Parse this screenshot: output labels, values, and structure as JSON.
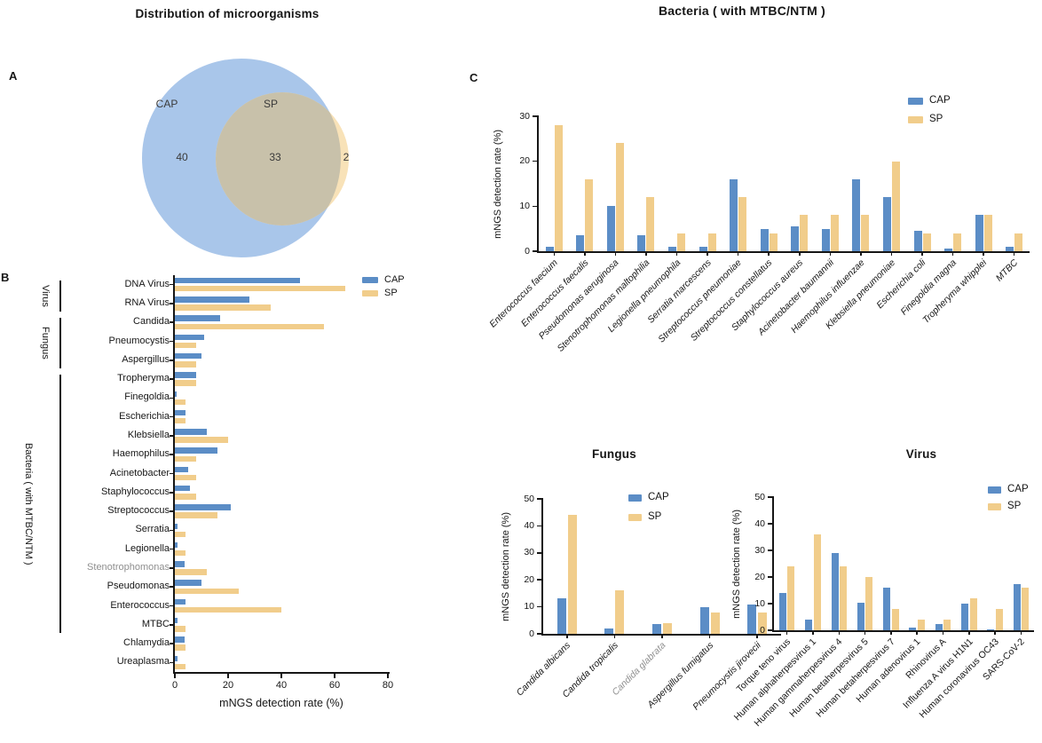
{
  "panels": {
    "a": "A",
    "b": "B",
    "c": "C"
  },
  "colors": {
    "cap": "#5B8DC6",
    "sp": "#F1CD8B",
    "venn_cap": "#A9C6EA",
    "venn_sp": "#F8E2B8",
    "venn_overlap": "#C8C1AA",
    "muted_label": "#8F8F8F",
    "ink": "#161616"
  },
  "chart_data": [
    {
      "id": "venn-distribution",
      "type": "venn",
      "title": "Distribution of microorganisms",
      "sets": [
        {
          "label": "CAP",
          "value": 40
        },
        {
          "label": "SP",
          "value": 2
        }
      ],
      "overlap": 33
    },
    {
      "id": "all-organisms",
      "type": "bar",
      "orientation": "horizontal",
      "xlabel": "mNGS detection rate (%)",
      "xlim": [
        0,
        80
      ],
      "xticks": [
        0,
        20,
        40,
        60,
        80
      ],
      "legend": [
        "CAP",
        "SP"
      ],
      "legend_position": "top-right",
      "categories": [
        "DNA Virus",
        "RNA Virus",
        "Candida",
        "Pneumocystis",
        "Aspergillus",
        "Tropheryma",
        "Finegoldia",
        "Escherichia",
        "Klebsiella",
        "Haemophilus",
        "Acinetobacter",
        "Staphylococcus",
        "Streptococcus",
        "Serratia",
        "Legionella",
        "Stenotrophomonas",
        "Pseudomonas",
        "Enterococcus",
        "MTBC",
        "Chlamydia",
        "Ureaplasma"
      ],
      "series": [
        {
          "name": "CAP",
          "values": [
            47,
            28,
            17,
            11,
            10,
            8,
            0.5,
            4,
            12,
            16,
            5,
            5.5,
            21,
            1,
            1,
            3.5,
            10,
            4,
            1,
            3.5,
            1
          ]
        },
        {
          "name": "SP",
          "values": [
            64,
            36,
            56,
            8,
            8,
            8,
            4,
            4,
            20,
            8,
            8,
            8,
            16,
            4,
            4,
            12,
            24,
            40,
            4,
            4,
            4
          ]
        }
      ],
      "groups": [
        {
          "label": "Virus",
          "from": 0,
          "to": 1
        },
        {
          "label": "Fungus",
          "from": 2,
          "to": 4
        },
        {
          "label": "Bacteria ( with MTBC/NTM )",
          "from": 5,
          "to": 18
        }
      ],
      "muted_categories": [
        "Stenotrophomonas"
      ],
      "italic_labels": false
    },
    {
      "id": "bacteria-species",
      "type": "bar",
      "orientation": "vertical",
      "title": "Bacteria ( with MTBC/NTM )",
      "ylabel": "mNGS detection rate (%)",
      "ylim": [
        0,
        30
      ],
      "yticks": [
        0,
        10,
        20,
        30
      ],
      "legend": [
        "CAP",
        "SP"
      ],
      "legend_position": "top-right",
      "categories": [
        "Enterococcus faecium",
        "Enterococcus faecalis",
        "Pseudomonas aeruginosa",
        "Stenotrophomonas maltophilia",
        "Legionella pneumophila",
        "Serratia marcescens",
        "Streptococcus pneumoniae",
        "Streptococcus constellatus",
        "Staphylococcus aureus",
        "Acinetobacter baumannii",
        "Haemophilus influenzae",
        "Klebsiella pneumoniae",
        "Escherichia coli",
        "Finegoldia magna",
        "Tropheryma whipplei",
        "MTBC"
      ],
      "series": [
        {
          "name": "CAP",
          "values": [
            1,
            3.5,
            10,
            3.5,
            1,
            1,
            16,
            5,
            5.5,
            5,
            16,
            12,
            4.5,
            0.5,
            8,
            1
          ]
        },
        {
          "name": "SP",
          "values": [
            28,
            16,
            24,
            12,
            4,
            4,
            12,
            4,
            8,
            8,
            8,
            20,
            4,
            4,
            8,
            4
          ]
        }
      ],
      "muted_categories": [],
      "italic_labels": true
    },
    {
      "id": "fungus-species",
      "type": "bar",
      "orientation": "vertical",
      "title": "Fungus",
      "ylabel": "mNGS detection rate (%)",
      "ylim": [
        0,
        50
      ],
      "yticks": [
        0,
        10,
        20,
        30,
        40,
        50
      ],
      "legend": [
        "CAP",
        "SP"
      ],
      "legend_position": "top-right-inside",
      "categories": [
        "Candida albicans",
        "Candida tropicalis",
        "Candida glabrata",
        "Aspergillus fumigatus",
        "Pneumocystis jirovecii"
      ],
      "series": [
        {
          "name": "CAP",
          "values": [
            13,
            2,
            3.5,
            10,
            11
          ]
        },
        {
          "name": "SP",
          "values": [
            44,
            16,
            4,
            8,
            8
          ]
        }
      ],
      "muted_categories": [
        "Candida glabrata"
      ],
      "italic_labels": true
    },
    {
      "id": "virus-species",
      "type": "bar",
      "orientation": "vertical",
      "title": "Virus",
      "ylabel": "mNGS detection rate (%)",
      "ylim": [
        0,
        50
      ],
      "yticks": [
        0,
        10,
        20,
        30,
        40,
        50
      ],
      "legend": [
        "CAP",
        "SP"
      ],
      "legend_position": "top-right-inside",
      "categories": [
        "Torque teno virus",
        "Human alphaherpesvirus 1",
        "Human gammaherpesvirus 4",
        "Human betaherpesvirus 5",
        "Human betaherpesvirus 7",
        "Human adenovirus 1",
        "Rhinovirus A",
        "Influenza A virus H1N1",
        "Human coronavirus OC43",
        "SARS-CoV-2"
      ],
      "series": [
        {
          "name": "CAP",
          "values": [
            14,
            4,
            29,
            10.5,
            16,
            1,
            2.5,
            10,
            0.5,
            17.5
          ]
        },
        {
          "name": "SP",
          "values": [
            24,
            36,
            24,
            20,
            8,
            4,
            4,
            12,
            8,
            16
          ]
        }
      ],
      "muted_categories": [],
      "italic_labels": false
    }
  ]
}
